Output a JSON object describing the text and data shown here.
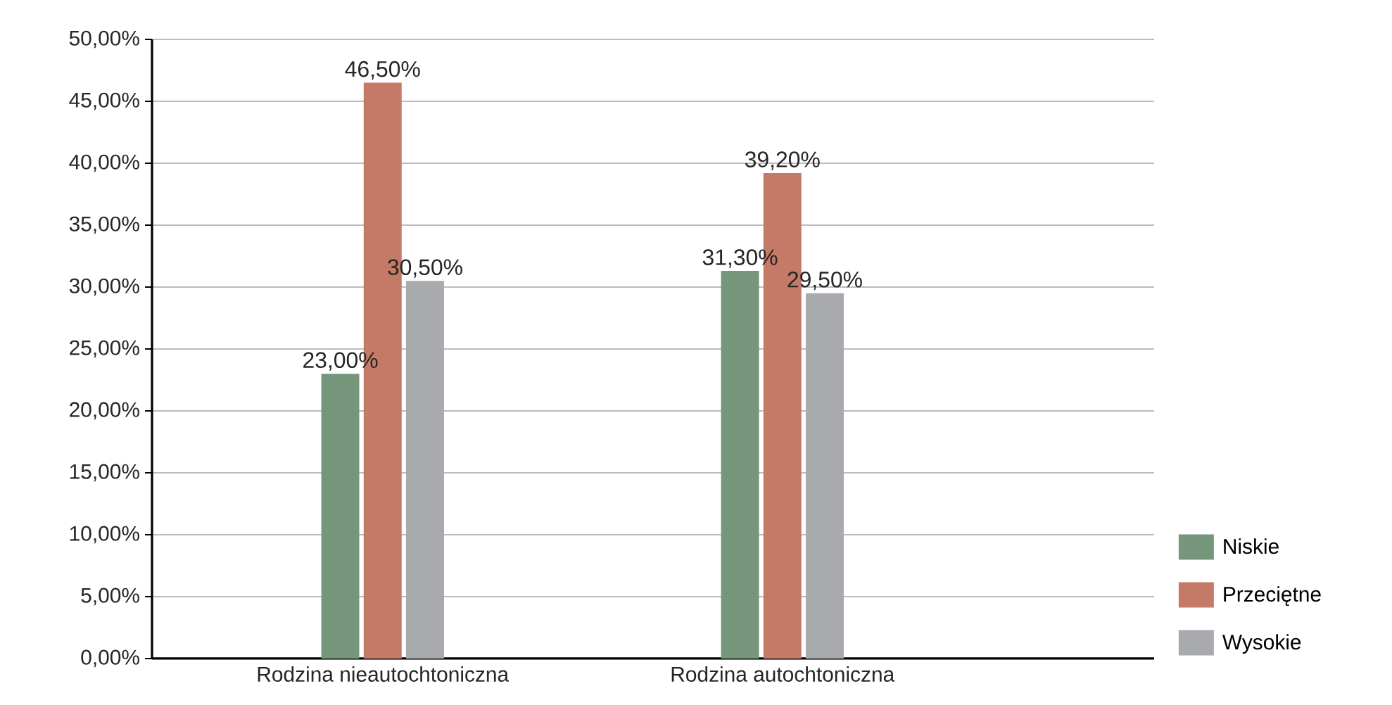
{
  "chart_data": {
    "type": "bar",
    "categories": [
      "Rodzina nieautochtoniczna",
      "Rodzina autochtoniczna"
    ],
    "series": [
      {
        "name": "Niskie",
        "color": "#76967b",
        "values": [
          23.0,
          31.3
        ],
        "value_labels": [
          "23,00%",
          "31,30%"
        ]
      },
      {
        "name": "Przeciętne",
        "color": "#c47a66",
        "values": [
          46.5,
          39.2
        ],
        "value_labels": [
          "46,50%",
          "39,20%"
        ]
      },
      {
        "name": "Wysokie",
        "color": "#a9aaae",
        "values": [
          30.5,
          29.5
        ],
        "value_labels": [
          "30,50%",
          "29,50%"
        ]
      }
    ],
    "ylim": [
      0,
      50
    ],
    "yticks": [
      {
        "value": 0,
        "label": "0,00%"
      },
      {
        "value": 5,
        "label": "5,00%"
      },
      {
        "value": 10,
        "label": "10,00%"
      },
      {
        "value": 15,
        "label": "15,00%"
      },
      {
        "value": 20,
        "label": "20,00%"
      },
      {
        "value": 25,
        "label": "25,00%"
      },
      {
        "value": 30,
        "label": "30,00%"
      },
      {
        "value": 35,
        "label": "35,00%"
      },
      {
        "value": 40,
        "label": "40,00%"
      },
      {
        "value": 45,
        "label": "45,00%"
      },
      {
        "value": 50,
        "label": "50,00%"
      }
    ],
    "grid": "y",
    "legend": "right"
  }
}
